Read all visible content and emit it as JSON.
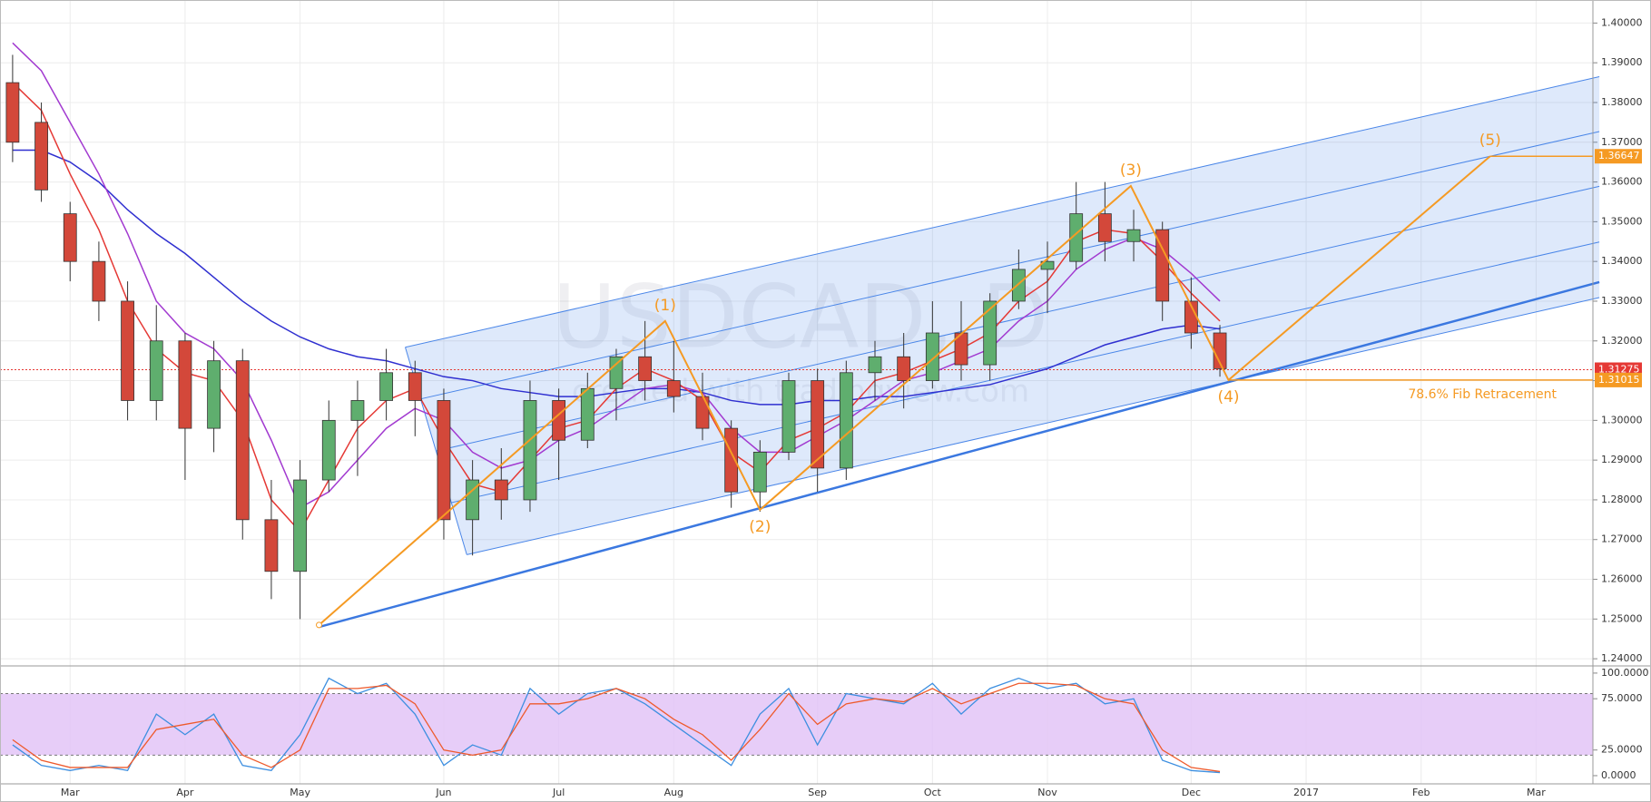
{
  "chart_data": [
    {
      "type": "candlestick",
      "watermark": [
        "USDCAD, D",
        "created with tradingview.com"
      ],
      "categories": [
        null,
        null,
        "Mar",
        null,
        null,
        null,
        "Apr",
        null,
        null,
        null,
        "May",
        null,
        null,
        null,
        null,
        "Jun",
        null,
        null,
        null,
        "Jul",
        null,
        null,
        null,
        "Aug",
        null,
        null,
        null,
        null,
        "Sep",
        null,
        null,
        null,
        "Oct",
        null,
        null,
        null,
        "Nov",
        null,
        null,
        null,
        null,
        "Dec",
        null,
        null,
        null,
        "2017",
        null,
        null,
        null,
        "Feb",
        null,
        null,
        null,
        "Mar",
        null,
        null
      ],
      "open": [
        1.385,
        1.375,
        1.352,
        1.34,
        1.33,
        1.305,
        1.32,
        1.298,
        1.315,
        1.275,
        1.262,
        1.285,
        1.3,
        1.305,
        1.312,
        1.305,
        1.275,
        1.285,
        1.28,
        1.305,
        1.295,
        1.308,
        1.316,
        1.31,
        1.306,
        1.298,
        1.282,
        1.292,
        1.31,
        1.288,
        1.312,
        1.316,
        1.31,
        1.322,
        1.314,
        1.33,
        1.338,
        1.34,
        1.352,
        1.345,
        1.348,
        1.33,
        1.322,
        null,
        null,
        null,
        null,
        null,
        null,
        null,
        null,
        null,
        null,
        null,
        null,
        null
      ],
      "high": [
        1.392,
        1.38,
        1.355,
        1.345,
        1.335,
        1.329,
        1.322,
        1.32,
        1.318,
        1.285,
        1.29,
        1.305,
        1.31,
        1.318,
        1.315,
        1.308,
        1.29,
        1.293,
        1.31,
        1.308,
        1.312,
        1.318,
        1.325,
        1.32,
        1.312,
        1.3,
        1.295,
        1.312,
        1.313,
        1.315,
        1.32,
        1.322,
        1.33,
        1.33,
        1.332,
        1.343,
        1.345,
        1.36,
        1.36,
        1.353,
        1.35,
        1.336,
        1.324,
        null,
        null,
        null,
        null,
        null,
        null,
        null,
        null,
        null,
        null,
        null,
        null,
        null
      ],
      "low": [
        1.365,
        1.355,
        1.335,
        1.325,
        1.3,
        1.3,
        1.285,
        1.292,
        1.27,
        1.255,
        1.25,
        1.282,
        1.286,
        1.3,
        1.296,
        1.27,
        1.266,
        1.275,
        1.277,
        1.285,
        1.293,
        1.3,
        1.305,
        1.302,
        1.295,
        1.278,
        1.277,
        1.29,
        1.282,
        1.285,
        1.305,
        1.303,
        1.308,
        1.31,
        1.31,
        1.328,
        1.327,
        1.338,
        1.34,
        1.34,
        1.325,
        1.318,
        1.311,
        null,
        null,
        null,
        null,
        null,
        null,
        null,
        null,
        null,
        null,
        null,
        null,
        null
      ],
      "close": [
        1.37,
        1.358,
        1.34,
        1.33,
        1.305,
        1.32,
        1.298,
        1.315,
        1.275,
        1.262,
        1.285,
        1.3,
        1.305,
        1.312,
        1.305,
        1.275,
        1.285,
        1.28,
        1.305,
        1.295,
        1.308,
        1.316,
        1.31,
        1.306,
        1.298,
        1.282,
        1.292,
        1.31,
        1.288,
        1.312,
        1.316,
        1.31,
        1.322,
        1.314,
        1.33,
        1.338,
        1.34,
        1.352,
        1.345,
        1.348,
        1.33,
        1.322,
        1.313,
        null,
        null,
        null,
        null,
        null,
        null,
        null,
        null,
        null,
        null,
        null,
        null,
        null
      ],
      "up_color": "#5fae6e",
      "down_color": "#d3483a",
      "overlays": [
        {
          "color": "#2f2fd0",
          "values": [
            1.368,
            1.368,
            1.365,
            1.36,
            1.353,
            1.347,
            1.342,
            1.336,
            1.33,
            1.325,
            1.321,
            1.318,
            1.316,
            1.315,
            1.313,
            1.311,
            1.31,
            1.308,
            1.307,
            1.306,
            1.306,
            1.307,
            1.308,
            1.308,
            1.307,
            1.305,
            1.304,
            1.304,
            1.305,
            1.305,
            1.306,
            1.306,
            1.307,
            1.308,
            1.309,
            1.311,
            1.313,
            1.316,
            1.319,
            1.321,
            1.323,
            1.324,
            1.323,
            null,
            null,
            null,
            null,
            null,
            null,
            null,
            null,
            null,
            null,
            null,
            null,
            null
          ]
        },
        {
          "color": "#a23ad0",
          "values": [
            1.395,
            1.388,
            1.375,
            1.362,
            1.347,
            1.33,
            1.322,
            1.318,
            1.31,
            1.295,
            1.278,
            1.282,
            1.29,
            1.298,
            1.303,
            1.3,
            1.292,
            1.288,
            1.29,
            1.295,
            1.298,
            1.303,
            1.308,
            1.309,
            1.307,
            1.298,
            1.292,
            1.292,
            1.296,
            1.3,
            1.305,
            1.31,
            1.312,
            1.315,
            1.318,
            1.325,
            1.33,
            1.338,
            1.343,
            1.346,
            1.343,
            1.337,
            1.33,
            null,
            null,
            null,
            null,
            null,
            null,
            null,
            null,
            null,
            null,
            null,
            null,
            null
          ]
        },
        {
          "color": "#e53935",
          "values": [
            1.385,
            1.378,
            1.362,
            1.348,
            1.33,
            1.318,
            1.312,
            1.31,
            1.3,
            1.28,
            1.272,
            1.285,
            1.298,
            1.305,
            1.308,
            1.295,
            1.284,
            1.282,
            1.29,
            1.298,
            1.3,
            1.308,
            1.313,
            1.31,
            1.305,
            1.292,
            1.287,
            1.295,
            1.298,
            1.302,
            1.31,
            1.312,
            1.315,
            1.318,
            1.322,
            1.33,
            1.335,
            1.345,
            1.348,
            1.347,
            1.34,
            1.332,
            1.325,
            null,
            null,
            null,
            null,
            null,
            null,
            null,
            null,
            null,
            null,
            null,
            null,
            null
          ]
        }
      ],
      "channel": {
        "color": "#4a86e8",
        "lines": [
          [
            [
              13.66,
              1.3184
            ],
            [
              55.2,
              1.3865
            ]
          ],
          [
            [
              14.2,
              1.3054
            ],
            [
              55.2,
              1.3727
            ]
          ],
          [
            [
              14.73,
              1.2923
            ],
            [
              55.2,
              1.3589
            ]
          ],
          [
            [
              15.27,
              1.2793
            ],
            [
              55.2,
              1.3449
            ]
          ],
          [
            [
              15.8,
              1.2662
            ],
            [
              55.2,
              1.3309
            ]
          ]
        ]
      },
      "trendline": {
        "color": "#3b78e0",
        "points": [
          [
            10.66,
            1.248
          ],
          [
            55.2,
            1.3348
          ]
        ]
      },
      "wave": {
        "color": "#f59a23",
        "x": [
          10.66,
          22.7,
          26.0,
          38.9,
          42.3,
          51.4
        ],
        "y": [
          1.2485,
          1.325,
          1.2775,
          1.359,
          1.31015,
          1.36647
        ],
        "labels": [
          "(1)",
          "(2)",
          "(3)",
          "(4)",
          "(5)"
        ]
      },
      "levels": [
        {
          "value": 1.31275,
          "color": "#e53935",
          "style": "dotted"
        },
        {
          "value": 1.31015,
          "color": "#f59a23",
          "from": 42.3,
          "text": "78.6% Fib Retracement"
        },
        {
          "value": 1.36647,
          "color": "#f59a23",
          "from": 51.4
        }
      ],
      "ylim": [
        1.2382,
        1.4058
      ],
      "yticks": [
        {
          "value": 1.24,
          "label": "1.24000"
        },
        {
          "value": 1.25,
          "label": "1.25000"
        },
        {
          "value": 1.26,
          "label": "1.26000"
        },
        {
          "value": 1.27,
          "label": "1.27000"
        },
        {
          "value": 1.28,
          "label": "1.28000"
        },
        {
          "value": 1.29,
          "label": "1.29000"
        },
        {
          "value": 1.3,
          "label": "1.30000"
        },
        {
          "value": 1.31,
          "label": "1.31000"
        },
        {
          "value": 1.32,
          "label": "1.32000"
        },
        {
          "value": 1.33,
          "label": "1.33000"
        },
        {
          "value": 1.34,
          "label": "1.34000"
        },
        {
          "value": 1.35,
          "label": "1.35000"
        },
        {
          "value": 1.36,
          "label": "1.36000"
        },
        {
          "value": 1.37,
          "label": "1.37000"
        },
        {
          "value": 1.38,
          "label": "1.38000"
        },
        {
          "value": 1.39,
          "label": "1.39000"
        },
        {
          "value": 1.4,
          "label": "1.40000"
        }
      ],
      "grid": true
    },
    {
      "type": "line",
      "series": [
        {
          "color": "#3d8fe0",
          "values": [
            30,
            10,
            5,
            10,
            5,
            60,
            40,
            60,
            10,
            5,
            40,
            95,
            80,
            90,
            60,
            10,
            30,
            20,
            85,
            60,
            80,
            85,
            70,
            50,
            30,
            10,
            60,
            85,
            30,
            80,
            75,
            70,
            90,
            60,
            85,
            95,
            85,
            90,
            70,
            75,
            15,
            5,
            3,
            null,
            null,
            null,
            null,
            null,
            null,
            null,
            null,
            null,
            null,
            null,
            null,
            null
          ]
        },
        {
          "color": "#ee5a2c",
          "values": [
            35,
            15,
            8,
            8,
            8,
            45,
            50,
            55,
            20,
            8,
            25,
            85,
            85,
            88,
            70,
            25,
            20,
            25,
            70,
            70,
            75,
            85,
            75,
            55,
            40,
            15,
            45,
            80,
            50,
            70,
            75,
            72,
            85,
            70,
            80,
            90,
            90,
            88,
            75,
            70,
            25,
            8,
            4,
            null,
            null,
            null,
            null,
            null,
            null,
            null,
            null,
            null,
            null,
            null,
            null,
            null
          ]
        }
      ],
      "band": [
        20,
        80
      ],
      "band_color": "#e3c4f7",
      "ylim": [
        -8,
        107
      ],
      "yticks": [
        {
          "value": 0,
          "label": "0.0000"
        },
        {
          "value": 25,
          "label": "25.0000"
        },
        {
          "value": 75,
          "label": "75.0000"
        },
        {
          "value": 100,
          "label": "100.0000"
        }
      ]
    }
  ]
}
